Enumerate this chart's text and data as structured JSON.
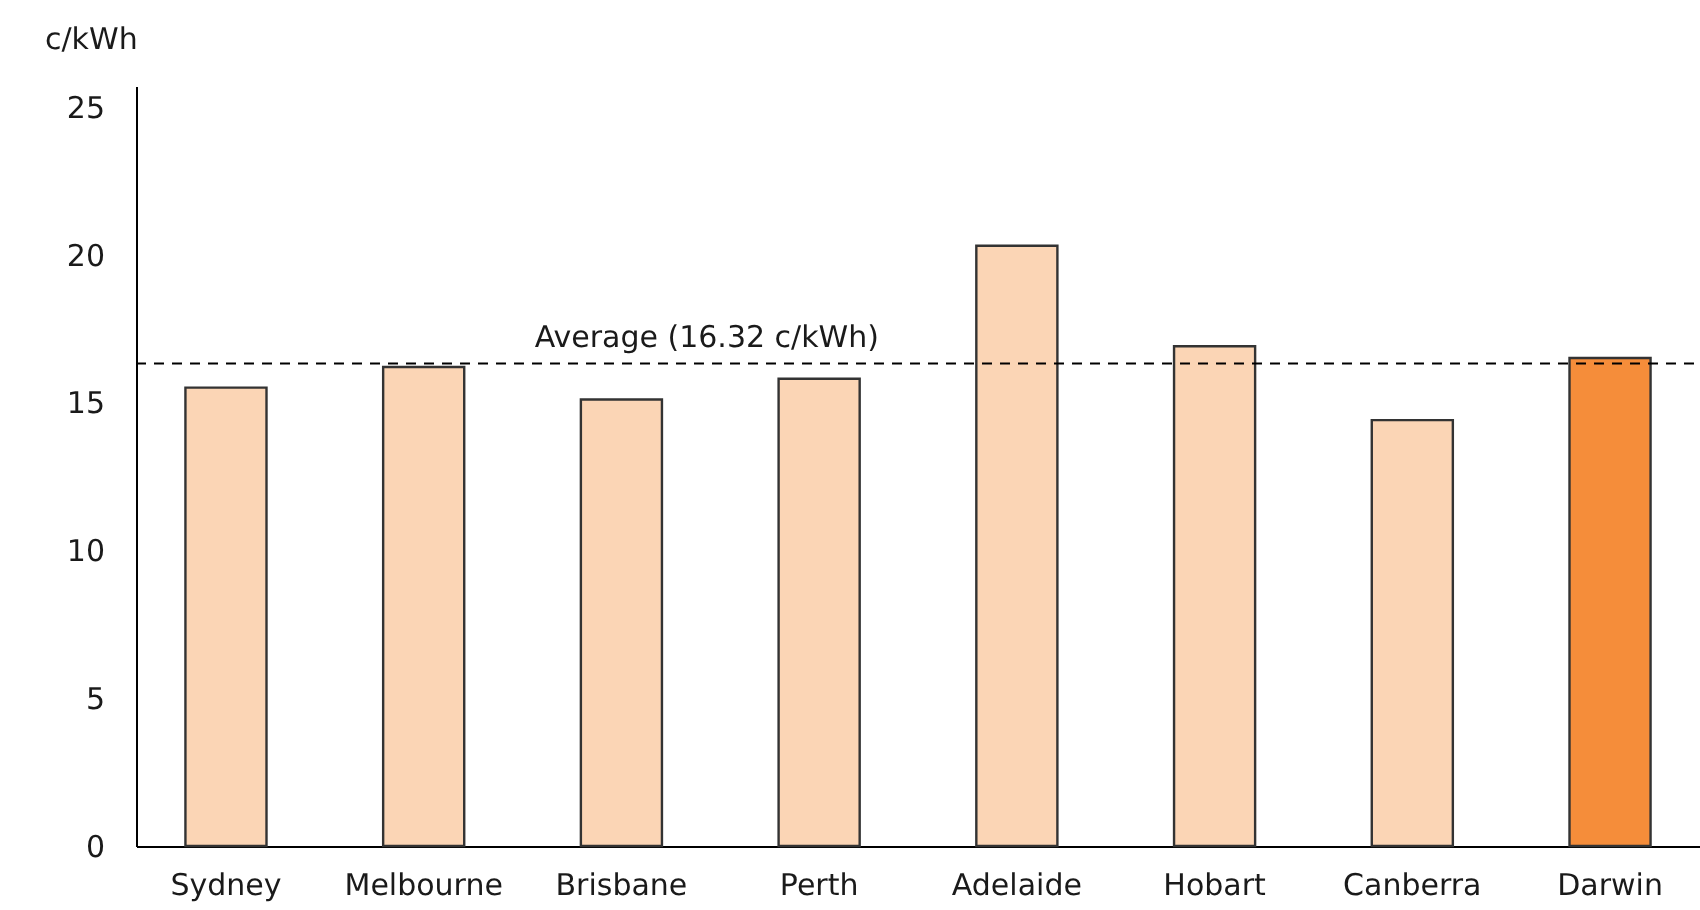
{
  "chart_data": {
    "type": "bar",
    "ylabel": "c/kWh",
    "categories": [
      "Sydney",
      "Melbourne",
      "Brisbane",
      "Perth",
      "Adelaide",
      "Hobart",
      "Canberra",
      "Darwin"
    ],
    "values": [
      15.5,
      16.2,
      15.1,
      15.8,
      20.3,
      16.9,
      14.4,
      16.5
    ],
    "colors": [
      "#fbd5b5",
      "#fbd5b5",
      "#fbd5b5",
      "#fbd5b5",
      "#fbd5b5",
      "#fbd5b5",
      "#fbd5b5",
      "#f58d3a"
    ],
    "ylim": [
      0,
      25.7
    ],
    "yticks": [
      0,
      5,
      10,
      15,
      20,
      25
    ],
    "grid": false,
    "ref_lines": [
      {
        "axis": "y",
        "value": 16.32,
        "label": "Average (16.32 c/kWh)",
        "color": "#000000",
        "line_style": "dashed"
      }
    ]
  }
}
